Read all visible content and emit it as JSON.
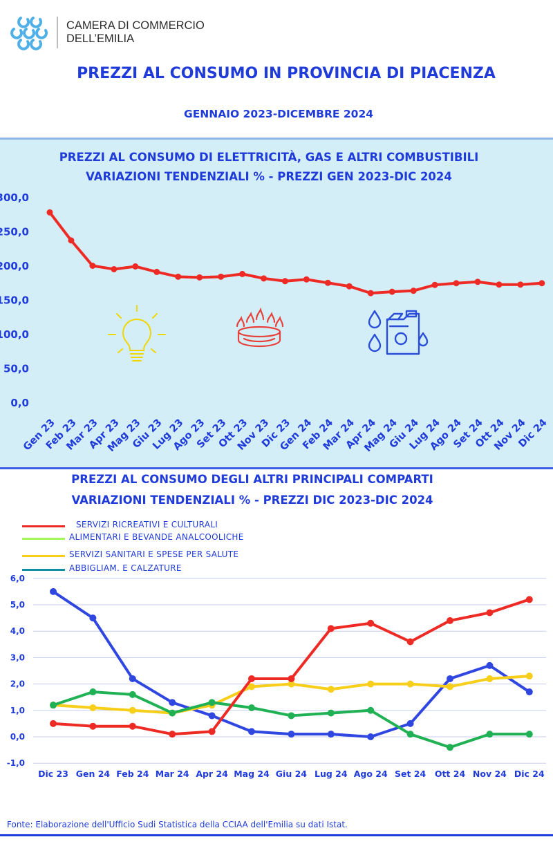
{
  "header": {
    "org_line1": "CAMERA DI COMMERCIO",
    "org_line2": "DELL’EMILIA",
    "main_title": "PREZZI AL CONSUMO IN PROVINCIA DI PIACENZA",
    "period": "GENNAIO 2023-DICEMBRE 2024"
  },
  "colors": {
    "brand_blue": "#1f3bd9",
    "panel_bg": "#d4eef8",
    "red": "#ee2a24",
    "yellow": "#f7cf1b",
    "green": "#20b154",
    "blue": "#2f46e0",
    "icon_yellow": "#f2d600",
    "icon_red": "#e8403a",
    "icon_blue": "#2a4ed8"
  },
  "icons": [
    "light-bulb-icon",
    "gas-burner-icon",
    "fuel-can-icon"
  ],
  "chart_data": [
    {
      "type": "line",
      "title": "PREZZI AL CONSUMO DI ELETTRICITÀ, GAS  E ALTRI COMBUSTIBILI",
      "subtitle": "VARIAZIONI  TENDENZIALI %  - PREZZI GEN 2023-DIC 2024",
      "categories": [
        "Gen 23",
        "Feb 23",
        "Mar 23",
        "Apr 23",
        "Mag 23",
        "Giu 23",
        "Lug 23",
        "Ago 23",
        "Set 23",
        "Ott 23",
        "Nov 23",
        "Dic 23",
        "Gen 24",
        "Feb 24",
        "Mar 24",
        "Apr 24",
        "Mag 24",
        "Giu 24",
        "Lug 24",
        "Ago 24",
        "Set 24",
        "Ott 24",
        "Nov 24",
        "Dic 24"
      ],
      "y_ticks": [
        "0,0",
        "50,0",
        "100,0",
        "150,0",
        "200,0",
        "250,0",
        "300,0"
      ],
      "ylim": [
        0,
        300
      ],
      "grid": false,
      "series": [
        {
          "color": "#ee2a24",
          "values": [
            278.5,
            237.5,
            200.5,
            195.5,
            199.5,
            191.5,
            184.5,
            183.5,
            184.5,
            188.5,
            182,
            178,
            180.5,
            175.5,
            170.5,
            160.5,
            162.5,
            164,
            172.5,
            175,
            177,
            173,
            173,
            175
          ]
        }
      ]
    },
    {
      "type": "line",
      "title": "PREZZI AL CONSUMO DEGLI ALTRI PRINCIPALI COMPARTI",
      "subtitle": "VARIAZIONI  TENDENZIALI %  - PREZZI DIC 2023-DIC 2024",
      "categories": [
        "Dic 23",
        "Gen 24",
        "Feb 24",
        "Mar 24",
        "Apr 24",
        "Mag 24",
        "Giu 24",
        "Lug 24",
        "Ago 24",
        "Set 24",
        "Ott 24",
        "Nov 24",
        "Dic 24"
      ],
      "y_ticks": [
        "-1,0",
        "0,0",
        "1,0",
        "2,0",
        "3,0",
        "4,0",
        "5,0",
        "6,0"
      ],
      "ylim": [
        -1,
        6
      ],
      "grid": true,
      "legend_position": "top-left",
      "legend": [
        {
          "label": "SERVIZI RICREATIVI E CULTURALI",
          "color": "#ee2a24"
        },
        {
          "label": "ALIMENTARI E BEVANDE ANALCOOLICHE",
          "color": "#a6f55a"
        },
        {
          "label": "SERVIZI SANITARI E SPESE PER SALUTE",
          "color": "#f7cf1b"
        },
        {
          "label": "ABBIGLIAM.  E CALZATURE",
          "color": "#0f8fa0"
        }
      ],
      "series": [
        {
          "color": "#2f46e0",
          "values": [
            5.5,
            4.5,
            2.2,
            1.3,
            0.8,
            0.2,
            0.1,
            0.1,
            0.0,
            0.5,
            2.2,
            2.7,
            1.7
          ]
        },
        {
          "color": "#f7cf1b",
          "values": [
            1.2,
            1.1,
            1.0,
            0.9,
            1.2,
            1.9,
            2.0,
            1.8,
            2.0,
            2.0,
            1.9,
            2.2,
            2.3
          ]
        },
        {
          "color": "#20b154",
          "values": [
            1.2,
            1.7,
            1.6,
            0.9,
            1.3,
            1.1,
            0.8,
            0.9,
            1.0,
            0.1,
            -0.4,
            0.1,
            0.1
          ]
        },
        {
          "color": "#ee2a24",
          "values": [
            0.5,
            0.4,
            0.4,
            0.1,
            0.2,
            2.2,
            2.2,
            4.1,
            4.3,
            3.6,
            4.4,
            4.7,
            5.2
          ]
        }
      ]
    }
  ],
  "footer": {
    "source": "Fonte: Elaborazione dell'Ufficio Sudi Statistica della CCIAA dell'Emilia su dati Istat."
  }
}
